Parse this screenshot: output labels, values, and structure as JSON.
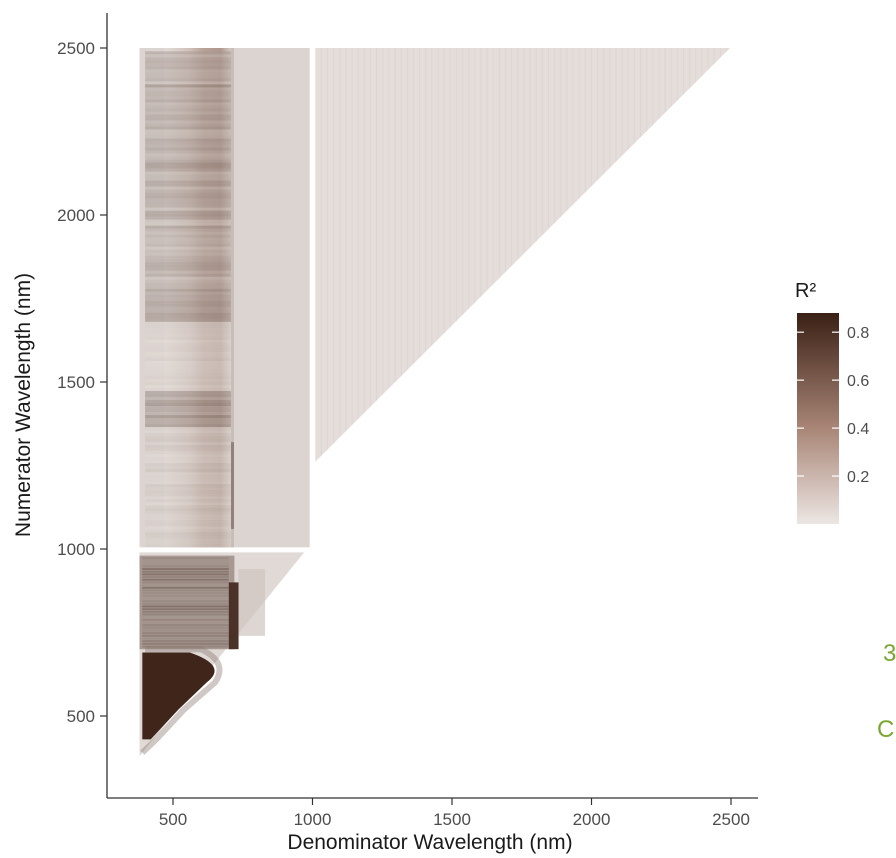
{
  "chart_data": {
    "type": "heatmap",
    "title": "",
    "xlabel": "Denominator Wavelength (nm)",
    "ylabel": "Numerator Wavelength (nm)",
    "xlim": [
      350,
      2550
    ],
    "ylim": [
      300,
      2550
    ],
    "x_ticks": [
      500,
      1000,
      1500,
      2000,
      2500
    ],
    "y_ticks": [
      500,
      1000,
      1500,
      2000,
      2500
    ],
    "grid": false,
    "legend": {
      "title": "R²",
      "position": "right",
      "ticks": [
        0.8,
        0.6,
        0.4,
        0.2
      ],
      "min": 0,
      "max": 0.88,
      "low_color": "#ece6e3",
      "high_color": "#3b2015"
    },
    "domain": {
      "numerator_range": [
        380,
        2500
      ],
      "denominator_range": [
        380,
        2500
      ],
      "constraint": "numerator >= denominator",
      "gaps_at": [
        1000
      ]
    },
    "regions": [
      {
        "x": [
          380,
          700
        ],
        "y": [
          380,
          690
        ],
        "r2": 0.85
      },
      {
        "x": [
          380,
          720
        ],
        "y": [
          700,
          980
        ],
        "r2": 0.55
      },
      {
        "x": [
          700,
          730
        ],
        "y": [
          700,
          880
        ],
        "r2": 0.75
      },
      {
        "x": [
          380,
          1000
        ],
        "y": [
          1000,
          2500
        ],
        "r2": 0.1
      },
      {
        "x": [
          530,
          700
        ],
        "y": [
          1380,
          1470
        ],
        "r2": 0.35
      },
      {
        "x": [
          500,
          700
        ],
        "y": [
          1700,
          2500
        ],
        "r2": 0.3
      },
      {
        "x": [
          1000,
          2500
        ],
        "y": [
          1000,
          2500
        ],
        "r2": 0.04
      }
    ]
  },
  "edge_text": {
    "line1": "3",
    "line2": "C"
  }
}
